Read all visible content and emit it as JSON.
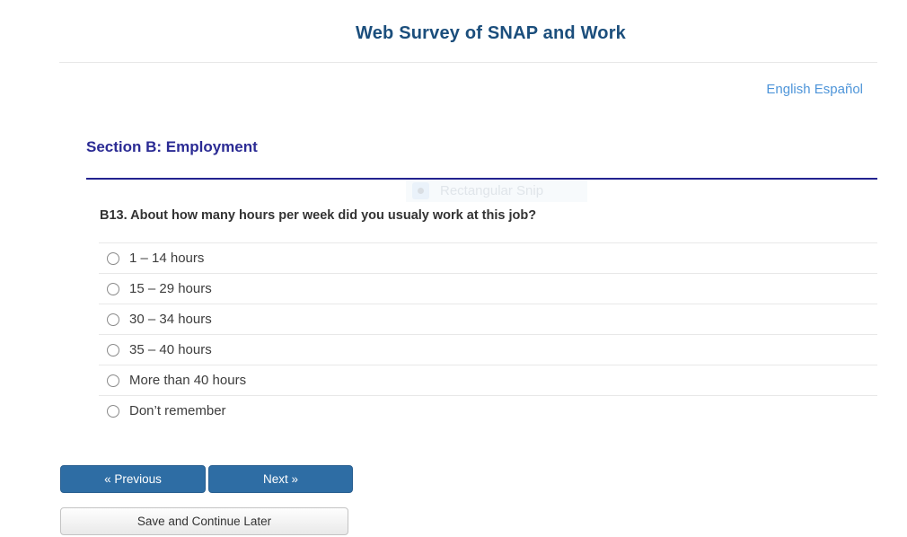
{
  "header": {
    "title": "Web Survey of SNAP and Work"
  },
  "language": {
    "english": "English",
    "spanish": "Español"
  },
  "section": {
    "title": "Section B: Employment"
  },
  "question": {
    "label": "B13. About how many hours per week did you usualy work at this job?"
  },
  "options": [
    "1 – 14 hours",
    "15 – 29 hours",
    "30 – 34 hours",
    "35 – 40 hours",
    "More than 40 hours",
    "Don’t remember"
  ],
  "buttons": {
    "previous": "« Previous",
    "next": "Next »",
    "save": "Save and Continue Later"
  },
  "artifact": {
    "label": "Rectangular Snip"
  },
  "colors": {
    "title_blue": "#1b4e7c",
    "section_indigo": "#2b2b94",
    "link_blue": "#4e95d9",
    "button_blue": "#2e6da4"
  }
}
